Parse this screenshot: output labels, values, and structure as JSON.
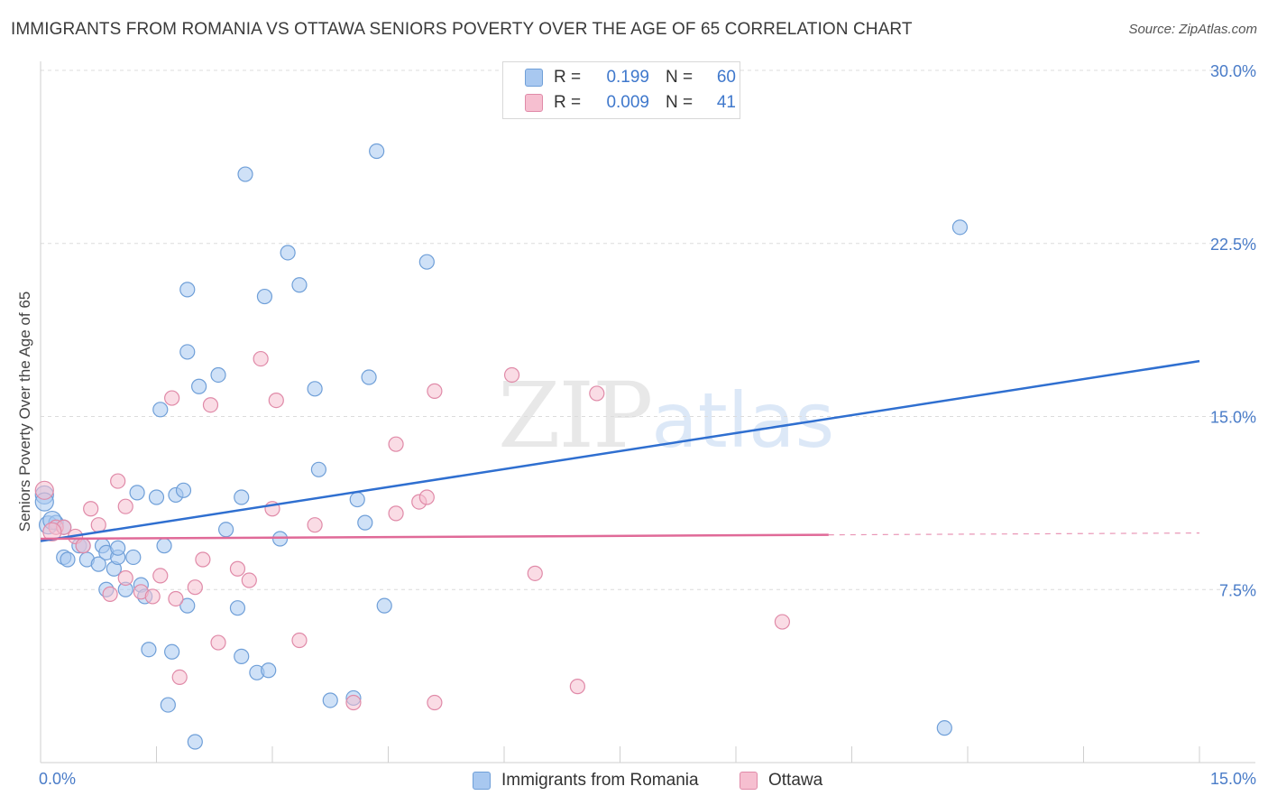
{
  "title": "IMMIGRANTS FROM ROMANIA VS OTTAWA SENIORS POVERTY OVER THE AGE OF 65 CORRELATION CHART",
  "source": "Source: ZipAtlas.com",
  "watermark": {
    "zip": "ZIP",
    "atlas": "atlas"
  },
  "legend": {
    "r_label": "R =",
    "n_label": "N =",
    "rows": [
      {
        "r": "0.199",
        "n": "60",
        "color": "#a8c8f0",
        "border": "#6f9fd8"
      },
      {
        "r": "0.009",
        "n": "41",
        "color": "#f6bfd0",
        "border": "#e08aa8"
      }
    ]
  },
  "bottom_legend": [
    {
      "label": "Immigrants from Romania",
      "color": "#a8c8f0",
      "border": "#6f9fd8"
    },
    {
      "label": "Ottawa",
      "color": "#f6bfd0",
      "border": "#e08aa8"
    }
  ],
  "chart_data": {
    "type": "scatter",
    "xlabel": "",
    "ylabel": "Seniors Poverty Over the Age of 65",
    "xlim": [
      0,
      15
    ],
    "ylim": [
      0,
      30
    ],
    "x_tick_labels": [
      "0.0%",
      "15.0%"
    ],
    "y_tick_labels": [
      "7.5%",
      "15.0%",
      "22.5%",
      "30.0%"
    ],
    "y_ticks": [
      7.5,
      15.0,
      22.5,
      30.0
    ],
    "grid": true,
    "series": [
      {
        "name": "Immigrants from Romania",
        "color": "#6f9fd8",
        "fill": "rgba(168,200,240,0.55)",
        "trend": {
          "x": [
            0,
            15
          ],
          "y": [
            9.6,
            17.4
          ],
          "color": "#2f6fd0",
          "dashed_from": null
        },
        "points": [
          [
            0.05,
            11.6
          ],
          [
            0.1,
            10.3
          ],
          [
            0.2,
            10.4
          ],
          [
            0.3,
            10.2
          ],
          [
            0.3,
            8.9
          ],
          [
            0.35,
            8.8
          ],
          [
            0.5,
            9.4
          ],
          [
            0.55,
            9.4
          ],
          [
            0.6,
            8.8
          ],
          [
            0.75,
            8.6
          ],
          [
            0.8,
            9.4
          ],
          [
            0.85,
            9.1
          ],
          [
            0.95,
            8.4
          ],
          [
            1.0,
            8.9
          ],
          [
            1.2,
            8.9
          ],
          [
            0.85,
            7.5
          ],
          [
            1.1,
            7.5
          ],
          [
            1.3,
            7.7
          ],
          [
            1.35,
            7.2
          ],
          [
            1.25,
            11.7
          ],
          [
            1.5,
            11.5
          ],
          [
            1.75,
            11.6
          ],
          [
            1.85,
            11.8
          ],
          [
            1.6,
            9.4
          ],
          [
            1.55,
            15.3
          ],
          [
            1.4,
            4.9
          ],
          [
            1.7,
            4.8
          ],
          [
            1.65,
            2.5
          ],
          [
            2.0,
            0.9
          ],
          [
            1.9,
            6.8
          ],
          [
            1.9,
            17.8
          ],
          [
            2.05,
            16.3
          ],
          [
            2.3,
            16.8
          ],
          [
            1.9,
            20.5
          ],
          [
            2.65,
            25.5
          ],
          [
            2.4,
            10.1
          ],
          [
            2.55,
            6.7
          ],
          [
            2.6,
            11.5
          ],
          [
            2.6,
            4.6
          ],
          [
            2.9,
            20.2
          ],
          [
            2.8,
            3.9
          ],
          [
            2.95,
            4.0
          ],
          [
            3.1,
            9.7
          ],
          [
            3.2,
            22.1
          ],
          [
            3.35,
            20.7
          ],
          [
            3.55,
            16.2
          ],
          [
            3.6,
            12.7
          ],
          [
            3.75,
            2.7
          ],
          [
            4.1,
            11.4
          ],
          [
            4.2,
            10.4
          ],
          [
            4.25,
            16.7
          ],
          [
            4.35,
            26.5
          ],
          [
            4.45,
            6.8
          ],
          [
            4.05,
            2.8
          ],
          [
            5.0,
            21.7
          ],
          [
            11.9,
            23.2
          ],
          [
            11.7,
            1.5
          ],
          [
            0.15,
            10.5
          ],
          [
            0.05,
            11.3
          ],
          [
            1.0,
            9.3
          ]
        ]
      },
      {
        "name": "Ottawa",
        "color": "#e08aa8",
        "fill": "rgba(246,191,208,0.55)",
        "trend": {
          "x": [
            0,
            15
          ],
          "y": [
            9.7,
            9.95
          ],
          "color": "#e06a98",
          "dashed_from": 10.2
        },
        "points": [
          [
            0.05,
            11.8
          ],
          [
            0.2,
            10.2
          ],
          [
            0.3,
            10.2
          ],
          [
            0.45,
            9.8
          ],
          [
            0.55,
            9.4
          ],
          [
            0.65,
            11.0
          ],
          [
            0.75,
            10.3
          ],
          [
            1.0,
            12.2
          ],
          [
            1.1,
            11.1
          ],
          [
            0.9,
            7.3
          ],
          [
            1.1,
            8.0
          ],
          [
            1.3,
            7.4
          ],
          [
            1.45,
            7.2
          ],
          [
            1.55,
            8.1
          ],
          [
            1.75,
            7.1
          ],
          [
            1.8,
            3.7
          ],
          [
            2.0,
            7.6
          ],
          [
            2.1,
            8.8
          ],
          [
            2.3,
            5.2
          ],
          [
            2.2,
            15.5
          ],
          [
            1.7,
            15.8
          ],
          [
            2.55,
            8.4
          ],
          [
            2.7,
            7.9
          ],
          [
            2.85,
            17.5
          ],
          [
            3.05,
            15.7
          ],
          [
            3.0,
            11.0
          ],
          [
            3.35,
            5.3
          ],
          [
            3.55,
            10.3
          ],
          [
            4.05,
            2.6
          ],
          [
            4.6,
            13.8
          ],
          [
            4.6,
            10.8
          ],
          [
            4.9,
            11.3
          ],
          [
            5.0,
            11.5
          ],
          [
            5.1,
            16.1
          ],
          [
            5.1,
            2.6
          ],
          [
            6.1,
            16.8
          ],
          [
            6.4,
            8.2
          ],
          [
            6.95,
            3.3
          ],
          [
            7.2,
            16.0
          ],
          [
            9.6,
            6.1
          ],
          [
            0.15,
            10.0
          ]
        ]
      }
    ]
  }
}
